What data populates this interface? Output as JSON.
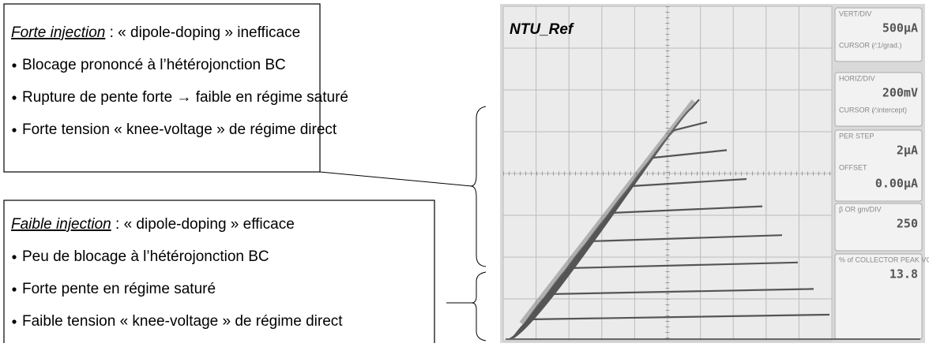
{
  "box_strong": {
    "title": "Forte injection",
    "title_rest": " : « dipole-doping » inefficace",
    "items": [
      "Blocage prononcé à l’hétérojonction BC",
      "Rupture de pente forte → faible en régime saturé",
      "Forte tension « knee-voltage » de régime direct"
    ]
  },
  "box_weak": {
    "title": "Faible injection",
    "title_rest": " : « dipole-doping » efficace",
    "items": [
      "Peu de blocage à l’hétérojonction BC",
      "Forte pente en régime saturé",
      "Faible tension « knee-voltage » de régime direct"
    ]
  },
  "scope": {
    "label": "NTU_Ref",
    "panels": [
      {
        "title": "VERT/DIV",
        "value": "500µA",
        "note": "CURSOR (⁄:1/grad.)"
      },
      {
        "title": "HORIZ/DIV",
        "value": "200mV",
        "note": "CURSOR (⁄:intercept)"
      },
      {
        "title": "PER STEP",
        "value": "2µA",
        "note": "OFFSET",
        "value2": "0.00µA"
      },
      {
        "title": "β OR gm/DIV",
        "value": "250"
      },
      {
        "title": "% of COLLECTOR PEAK VOLTS",
        "value": "13.8"
      }
    ]
  }
}
